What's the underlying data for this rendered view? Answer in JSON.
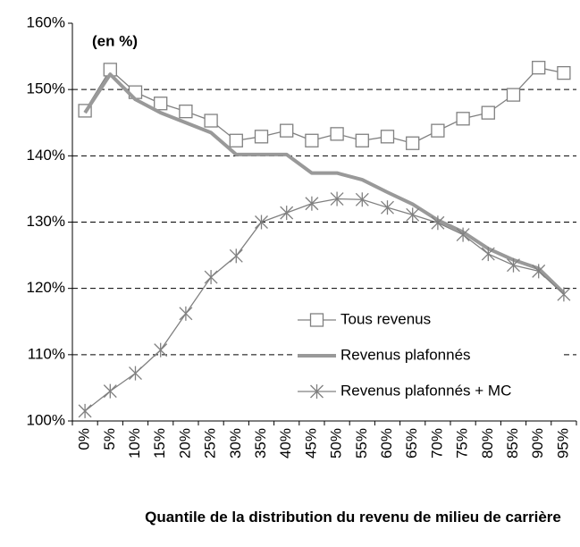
{
  "chart_data": {
    "type": "line",
    "annotation": "(en %)",
    "x_label": "Quantile de la distribution du revenu de milieu de carrière",
    "categories": [
      "0%",
      "5%",
      "10%",
      "15%",
      "20%",
      "25%",
      "30%",
      "35%",
      "40%",
      "45%",
      "50%",
      "55%",
      "60%",
      "65%",
      "70%",
      "75%",
      "80%",
      "85%",
      "90%",
      "95%"
    ],
    "series": [
      {
        "name": "Tous revenus",
        "color": "#808080",
        "marker": "square",
        "line_width": 1.3,
        "values": [
          146.8,
          153.0,
          149.6,
          147.9,
          146.7,
          145.3,
          142.3,
          142.9,
          143.8,
          142.3,
          143.3,
          142.3,
          142.9,
          141.9,
          143.8,
          145.6,
          146.5,
          149.2,
          153.3,
          152.5
        ]
      },
      {
        "name": "Revenus plafonnés",
        "color": "#999999",
        "marker": "none",
        "line_width": 4,
        "values": [
          146.5,
          152.3,
          148.5,
          146.5,
          145.0,
          143.5,
          140.2,
          140.2,
          140.2,
          137.4,
          137.4,
          136.4,
          134.5,
          132.7,
          130.3,
          128.5,
          126.0,
          124.3,
          123.0,
          119.3
        ]
      },
      {
        "name": "Revenus plafonnés + MC",
        "color": "#808080",
        "marker": "asterisk",
        "line_width": 1.3,
        "values": [
          101.5,
          104.5,
          107.2,
          110.7,
          116.2,
          121.7,
          124.9,
          130.0,
          131.4,
          132.8,
          133.5,
          133.4,
          132.2,
          131.1,
          129.9,
          128.1,
          125.2,
          123.5,
          122.6,
          119.1
        ]
      }
    ],
    "ylim": [
      100,
      160
    ],
    "yticks": [
      {
        "value": 100,
        "label": "100%"
      },
      {
        "value": 110,
        "label": "110%"
      },
      {
        "value": 120,
        "label": "120%"
      },
      {
        "value": 130,
        "label": "130%"
      },
      {
        "value": 140,
        "label": "140%"
      },
      {
        "value": 150,
        "label": "150%"
      },
      {
        "value": 160,
        "label": "160%"
      }
    ],
    "grid": true
  }
}
